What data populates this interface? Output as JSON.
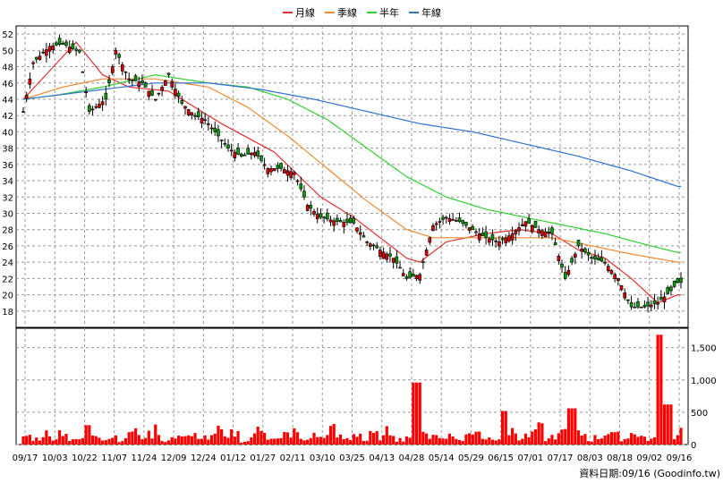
{
  "chart_data": {
    "type": "candlestick",
    "legend": [
      {
        "label": "月線",
        "color": "#e03030"
      },
      {
        "label": "季線",
        "color": "#f08a30"
      },
      {
        "label": "半年",
        "color": "#30d030"
      },
      {
        "label": "年線",
        "color": "#3070d0"
      }
    ],
    "price_axis": {
      "min": 16,
      "max": 53,
      "ticks": [
        "52",
        "50",
        "48",
        "46",
        "44",
        "42",
        "40",
        "38",
        "36",
        "34",
        "32",
        "30",
        "28",
        "26",
        "24",
        "22",
        "20",
        "18"
      ]
    },
    "volume_axis": {
      "min": 0,
      "max": 1800,
      "ticks": [
        "1,500",
        "1,000",
        "500",
        "0"
      ]
    },
    "date_labels": [
      "09/17",
      "10/03",
      "10/22",
      "11/07",
      "11/24",
      "12/09",
      "12/24",
      "01/12",
      "01/27",
      "02/11",
      "03/10",
      "03/25",
      "04/13",
      "04/28",
      "05/14",
      "05/29",
      "06/15",
      "07/01",
      "07/17",
      "08/03",
      "08/18",
      "09/02",
      "09/16"
    ],
    "price_path": [
      [
        0,
        42.5
      ],
      [
        3,
        48.5
      ],
      [
        8,
        50.5
      ],
      [
        12,
        50.8
      ],
      [
        17,
        49.8
      ],
      [
        20,
        42.5
      ],
      [
        25,
        44
      ],
      [
        28,
        50
      ],
      [
        32,
        46.5
      ],
      [
        36,
        46
      ],
      [
        40,
        44
      ],
      [
        44,
        47
      ],
      [
        48,
        43.5
      ],
      [
        52,
        42
      ],
      [
        55,
        41.5
      ],
      [
        58,
        40
      ],
      [
        62,
        38
      ],
      [
        66,
        37
      ],
      [
        70,
        37.5
      ],
      [
        74,
        35.5
      ],
      [
        78,
        35.5
      ],
      [
        82,
        35
      ],
      [
        86,
        31
      ],
      [
        90,
        29.5
      ],
      [
        95,
        29
      ],
      [
        100,
        28.8
      ],
      [
        104,
        26.5
      ],
      [
        108,
        25.5
      ],
      [
        112,
        24.5
      ],
      [
        116,
        22
      ],
      [
        120,
        22.5
      ],
      [
        124,
        28.5
      ],
      [
        128,
        29.5
      ],
      [
        132,
        29
      ],
      [
        136,
        28
      ],
      [
        140,
        27
      ],
      [
        144,
        26.5
      ],
      [
        148,
        27.5
      ],
      [
        152,
        29
      ],
      [
        156,
        28
      ],
      [
        160,
        27.5
      ],
      [
        164,
        22
      ],
      [
        168,
        26
      ],
      [
        172,
        24.5
      ],
      [
        176,
        24
      ],
      [
        180,
        22
      ],
      [
        184,
        18.5
      ],
      [
        188,
        18.5
      ],
      [
        192,
        19
      ],
      [
        196,
        20.5
      ],
      [
        198,
        21.5
      ]
    ],
    "moving_averages": [
      {
        "name": "月線",
        "points": [
          [
            0,
            44
          ],
          [
            16,
            51
          ],
          [
            24,
            47
          ],
          [
            32,
            45.5
          ],
          [
            44,
            45
          ],
          [
            60,
            41
          ],
          [
            76,
            37.5
          ],
          [
            90,
            32
          ],
          [
            100,
            29.5
          ],
          [
            108,
            27
          ],
          [
            116,
            24.5
          ],
          [
            120,
            24
          ],
          [
            128,
            26.5
          ],
          [
            140,
            27.5
          ],
          [
            150,
            28
          ],
          [
            160,
            27.5
          ],
          [
            168,
            25.5
          ],
          [
            176,
            24.5
          ],
          [
            184,
            22
          ],
          [
            192,
            19
          ],
          [
            198,
            20
          ]
        ]
      },
      {
        "name": "季線",
        "points": [
          [
            0,
            44
          ],
          [
            12,
            45.5
          ],
          [
            24,
            46.5
          ],
          [
            40,
            46.5
          ],
          [
            56,
            45.5
          ],
          [
            68,
            43
          ],
          [
            80,
            39.5
          ],
          [
            92,
            35.5
          ],
          [
            104,
            31.5
          ],
          [
            116,
            28
          ],
          [
            124,
            27
          ],
          [
            136,
            27
          ],
          [
            148,
            27
          ],
          [
            160,
            27
          ],
          [
            172,
            26
          ],
          [
            184,
            25
          ],
          [
            198,
            24
          ]
        ]
      },
      {
        "name": "半年",
        "points": [
          [
            0,
            44
          ],
          [
            10,
            44.5
          ],
          [
            24,
            45.5
          ],
          [
            40,
            47
          ],
          [
            56,
            46
          ],
          [
            68,
            45.5
          ],
          [
            80,
            44
          ],
          [
            92,
            41.5
          ],
          [
            104,
            38
          ],
          [
            116,
            34.5
          ],
          [
            128,
            32
          ],
          [
            140,
            30.5
          ],
          [
            152,
            29.5
          ],
          [
            164,
            28.5
          ],
          [
            176,
            27.5
          ],
          [
            188,
            26.2
          ],
          [
            198,
            25.2
          ]
        ]
      },
      {
        "name": "年線",
        "points": [
          [
            0,
            44
          ],
          [
            20,
            45
          ],
          [
            40,
            46
          ],
          [
            56,
            46
          ],
          [
            72,
            45.2
          ],
          [
            88,
            44
          ],
          [
            104,
            42.5
          ],
          [
            120,
            41
          ],
          [
            136,
            40
          ],
          [
            152,
            38.5
          ],
          [
            168,
            37
          ],
          [
            184,
            35.2
          ],
          [
            198,
            33.3
          ]
        ]
      }
    ],
    "volume_path": [
      130,
      90,
      170,
      110,
      200,
      60,
      80,
      300,
      160,
      95,
      130,
      70,
      220,
      110,
      150,
      240,
      60,
      100,
      180,
      140,
      70,
      120,
      210,
      90,
      170,
      50,
      130,
      260,
      110,
      80,
      160,
      190,
      70,
      140,
      100,
      230,
      120,
      90,
      170,
      60,
      150,
      110,
      200,
      80,
      130,
      960,
      140,
      180,
      90,
      210,
      70,
      150,
      260,
      100,
      110,
      520,
      180,
      90,
      140,
      240,
      80,
      130,
      200,
      560,
      160,
      70,
      110,
      190,
      140,
      90,
      230,
      120,
      80,
      1700,
      620,
      130,
      200
    ],
    "footer_label": "資料日期:",
    "footer_date": "09/16",
    "footer_source": "(Goodinfo.tw)"
  }
}
